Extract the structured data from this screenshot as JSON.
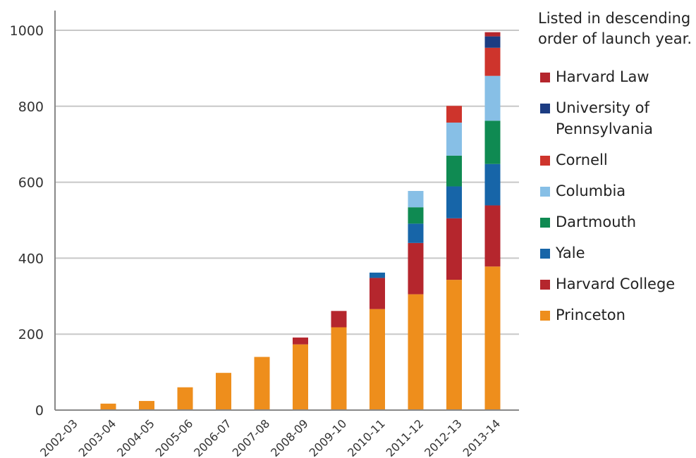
{
  "chart_data": {
    "type": "bar",
    "stacked": true,
    "categories": [
      "2002-03",
      "2003-04",
      "2004-05",
      "2005-06",
      "2006-07",
      "2007-08",
      "2008-09",
      "2009-10",
      "2010-11",
      "2011-12",
      "2012-13",
      "2013-14"
    ],
    "series": [
      {
        "name": "Princeton",
        "color": "#EE8E1C",
        "values": [
          0,
          17,
          24,
          60,
          98,
          140,
          173,
          218,
          266,
          305,
          343,
          378
        ]
      },
      {
        "name": "Harvard College",
        "color": "#B5262D",
        "values": [
          0,
          0,
          0,
          0,
          0,
          0,
          18,
          43,
          82,
          135,
          162,
          161
        ]
      },
      {
        "name": "Yale",
        "color": "#1765A8",
        "values": [
          0,
          0,
          0,
          0,
          0,
          0,
          0,
          0,
          14,
          51,
          84,
          109
        ]
      },
      {
        "name": "Dartmouth",
        "color": "#0F8A52",
        "values": [
          0,
          0,
          0,
          0,
          0,
          0,
          0,
          0,
          0,
          43,
          81,
          114
        ]
      },
      {
        "name": "Columbia",
        "color": "#87BFE6",
        "values": [
          0,
          0,
          0,
          0,
          0,
          0,
          0,
          0,
          0,
          43,
          87,
          118
        ]
      },
      {
        "name": "Cornell",
        "color": "#CE342C",
        "values": [
          0,
          0,
          0,
          0,
          0,
          0,
          0,
          0,
          0,
          0,
          44,
          74
        ]
      },
      {
        "name": "University of Pennsylvania",
        "color": "#1C3C82",
        "values": [
          0,
          0,
          0,
          0,
          0,
          0,
          0,
          0,
          0,
          0,
          0,
          30
        ]
      },
      {
        "name": "Harvard Law",
        "color": "#B5262D",
        "values": [
          0,
          0,
          0,
          0,
          0,
          0,
          0,
          0,
          0,
          0,
          0,
          11
        ]
      }
    ],
    "ylim": [
      0,
      1000
    ],
    "yticks": [
      0,
      200,
      400,
      600,
      800,
      1000
    ],
    "grid": true,
    "legend_position": "right",
    "legend_order": [
      "Harvard Law",
      "University of Pennsylvania",
      "Cornell",
      "Columbia",
      "Dartmouth",
      "Yale",
      "Harvard College",
      "Princeton"
    ],
    "legend_note": "Listed in descending order of launch year.",
    "title": "",
    "xlabel": "",
    "ylabel": ""
  }
}
